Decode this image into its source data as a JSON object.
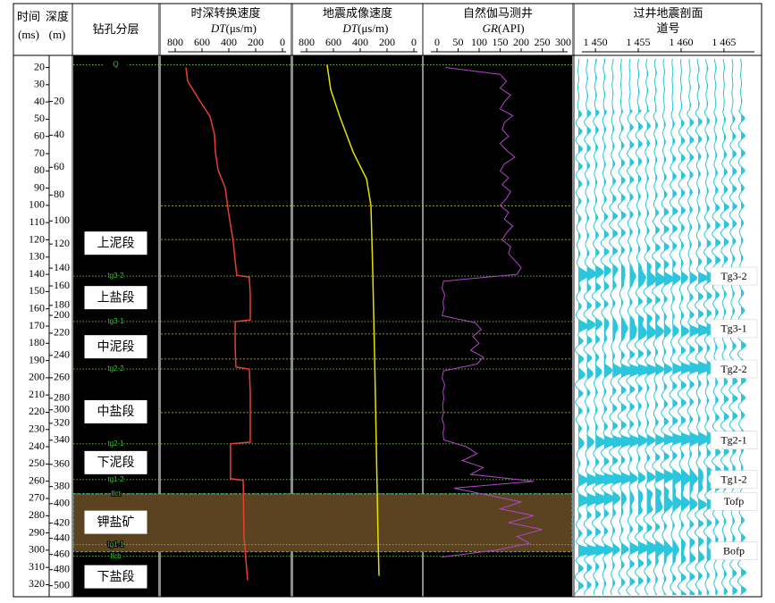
{
  "chart_data": {
    "type": "well_log",
    "headers": {
      "time": "时间",
      "depth": "深度",
      "time_unit": "(ms)",
      "depth_unit": "(m)",
      "strata": "钻孔分层",
      "dt1_title": "时深转换速度",
      "dt2_title": "地震成像速度",
      "dt_var": "DT",
      "dt_unit": "(μs/m)",
      "gr_title": "自然伽马测井",
      "gr_var": "GR",
      "gr_unit": "(API)",
      "seis_title": "过井地震剖面",
      "seis_sub": "道号"
    },
    "ylim": [
      13,
      327
    ],
    "yticks": [
      20,
      30,
      40,
      50,
      60,
      70,
      80,
      90,
      100,
      110,
      120,
      130,
      140,
      150,
      160,
      170,
      180,
      190,
      200,
      210,
      220,
      230,
      240,
      250,
      260,
      270,
      280,
      290,
      300,
      310,
      320
    ],
    "depth_ticks": [
      {
        "depth": 20,
        "time": 39.7
      },
      {
        "depth": 40,
        "time": 59.3
      },
      {
        "depth": 60,
        "time": 77.9
      },
      {
        "depth": 80,
        "time": 94
      },
      {
        "depth": 100,
        "time": 109
      },
      {
        "depth": 120,
        "time": 122.4
      },
      {
        "depth": 140,
        "time": 136.4
      },
      {
        "depth": 160,
        "time": 146.7
      },
      {
        "depth": 180,
        "time": 158
      },
      {
        "depth": 200,
        "time": 163.8
      },
      {
        "depth": 220,
        "time": 174.1
      },
      {
        "depth": 240,
        "time": 187
      },
      {
        "depth": 260,
        "time": 200
      },
      {
        "depth": 280,
        "time": 211.9
      },
      {
        "depth": 300,
        "time": 218.6
      },
      {
        "depth": 320,
        "time": 226.4
      },
      {
        "depth": 340,
        "time": 236.2
      },
      {
        "depth": 360,
        "time": 250.2
      },
      {
        "depth": 380,
        "time": 263.1
      },
      {
        "depth": 400,
        "time": 273
      },
      {
        "depth": 420,
        "time": 284.3
      },
      {
        "depth": 440,
        "time": 293.1
      },
      {
        "depth": 460,
        "time": 302.5
      },
      {
        "depth": 480,
        "time": 311.3
      },
      {
        "depth": 500,
        "time": 320.6
      }
    ],
    "dt_xlim": [
      800,
      0
    ],
    "dt_xticks": [
      800,
      600,
      400,
      200,
      0
    ],
    "gr_xlim": [
      0,
      300
    ],
    "gr_xticks": [
      0,
      50,
      100,
      150,
      200,
      250,
      300
    ],
    "trace_xlim": [
      1448,
      1467
    ],
    "trace_xticks": [
      {
        "value": 1450,
        "label": "1 450"
      },
      {
        "value": 1455,
        "label": "1 455"
      },
      {
        "value": 1460,
        "label": "1 460"
      },
      {
        "value": 1465,
        "label": "1 465"
      }
    ],
    "strata": [
      {
        "name": "上泥段",
        "time": 121.9
      },
      {
        "name": "上盐段",
        "time": 153.5
      },
      {
        "name": "中泥段",
        "time": 182
      },
      {
        "name": "中盐段",
        "time": 219.7
      },
      {
        "name": "下泥段",
        "time": 249.2
      },
      {
        "name": "钾盐矿",
        "time": 283.8
      },
      {
        "name": "下盐段",
        "time": 315.4
      }
    ],
    "horizons": [
      {
        "name": "Q",
        "time": 18.5
      },
      {
        "name": "tg3-2",
        "time": 141
      },
      {
        "name": "tg3-1",
        "time": 167.4
      },
      {
        "name": "tg2-2",
        "time": 194.9
      },
      {
        "name": "tg2-1",
        "time": 238.3
      },
      {
        "name": "tg1-2",
        "time": 259
      },
      {
        "name": "Ilct",
        "time": 267.3
      },
      {
        "name": "tg1-1",
        "time": 296.8
      },
      {
        "name": "Ilcb",
        "time": 303.5
      }
    ],
    "seismic_horizons": [
      {
        "name": "Tg3-2",
        "time": 141
      },
      {
        "name": "Tg3-1",
        "time": 171.5
      },
      {
        "name": "Tg2-2",
        "time": 194.9
      },
      {
        "name": "Tg2-1",
        "time": 236.2
      },
      {
        "name": "Tg1-2",
        "time": 259
      },
      {
        "name": "Tofp",
        "time": 271.7
      },
      {
        "name": "Bofp",
        "time": 300.4
      }
    ],
    "potash_zone": {
      "top": 267.3,
      "base": 300.9,
      "color": "#5b4322"
    },
    "guide_lines": [
      100.2,
      119.8,
      174.6,
      189.1,
      220.2
    ],
    "curves": {
      "dt1": {
        "color": "#e8402a",
        "time": [
          20,
          27.8,
          38.1,
          48.5,
          58.8,
          69.1,
          79.5,
          89.8,
          105.4,
          120.9,
          136.4,
          140.5,
          141.6,
          151.9,
          166.4,
          167.4,
          183,
          193.8,
          194.9,
          208.8,
          237.3,
          238.3,
          255.4,
          258.5,
          259.5,
          291.6,
          317.5
        ],
        "values": [
          720,
          707,
          627,
          540,
          507,
          500,
          480,
          427,
          400,
          367,
          347,
          340,
          247,
          240,
          240,
          353,
          353,
          347,
          247,
          240,
          240,
          387,
          387,
          387,
          293,
          287,
          260
        ]
      },
      "dt2": {
        "color": "#e6e000",
        "time": [
          18.4,
          32.9,
          48.5,
          69.1,
          84.7,
          100.2,
          136.4,
          188.1,
          239.9,
          291.6,
          314.9
        ],
        "values": [
          647,
          620,
          553,
          453,
          353,
          320,
          307,
          293,
          280,
          267,
          260
        ]
      },
      "gr": {
        "color": "#b048c8",
        "time": [
          20,
          24,
          28,
          32,
          36,
          40,
          44,
          48,
          52,
          56,
          60,
          64,
          68,
          72,
          76,
          80,
          84,
          88,
          92,
          96,
          100,
          104,
          108,
          112,
          116,
          120,
          124,
          128,
          132,
          136,
          140,
          144,
          148,
          152,
          156,
          160,
          164,
          168,
          172,
          176,
          180,
          184,
          188,
          192,
          196,
          200,
          204,
          208,
          212,
          216,
          220,
          224,
          228,
          232,
          236,
          240,
          244,
          248,
          252,
          256,
          260,
          264,
          268,
          272,
          276,
          280,
          284,
          288,
          292,
          296,
          300,
          304
        ],
        "values": [
          20,
          150,
          165,
          150,
          175,
          160,
          150,
          180,
          160,
          155,
          170,
          150,
          165,
          185,
          160,
          150,
          170,
          155,
          175,
          165,
          150,
          170,
          160,
          180,
          165,
          155,
          175,
          170,
          185,
          200,
          190,
          15,
          12,
          18,
          14,
          16,
          12,
          90,
          105,
          85,
          100,
          80,
          110,
          95,
          15,
          12,
          18,
          14,
          16,
          13,
          15,
          12,
          17,
          14,
          16,
          70,
          95,
          60,
          110,
          80,
          230,
          40,
          120,
          200,
          150,
          230,
          170,
          250,
          190,
          220,
          140,
          10
        ]
      }
    },
    "seismic_color": "#2cc6dc"
  }
}
